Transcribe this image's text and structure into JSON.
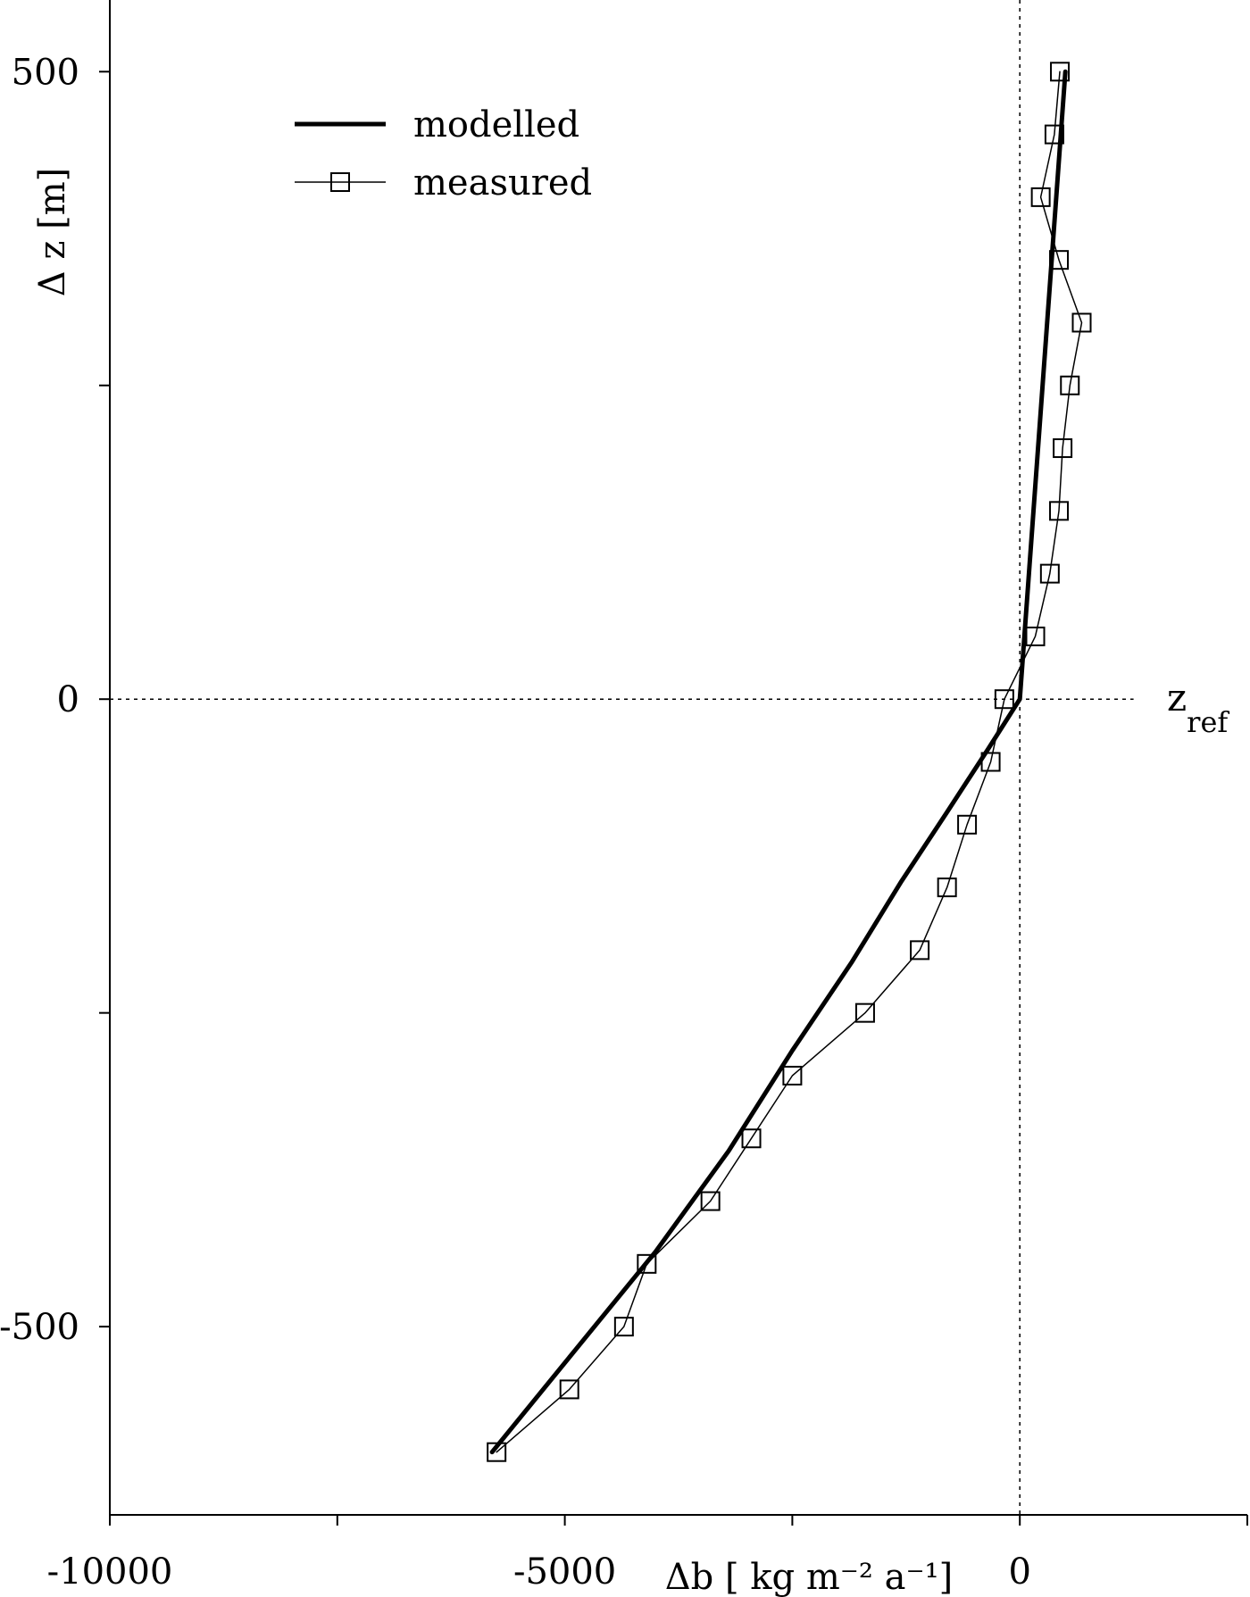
{
  "chart_data": {
    "type": "line",
    "xlabel": "Δb [ kg m⁻² a⁻¹]",
    "ylabel": "Δ z [m]",
    "xlim": [
      -10000,
      2500
    ],
    "ylim": [
      -650,
      550
    ],
    "x_ticks": [
      -10000,
      -7500,
      -5000,
      -2500,
      0,
      2500
    ],
    "x_tick_labels": [
      "-10000",
      "",
      "-5000",
      "",
      "0",
      ""
    ],
    "y_ticks": [
      -500,
      -250,
      0,
      250,
      500
    ],
    "y_tick_labels": [
      "-500",
      "",
      "0",
      "",
      "500"
    ],
    "reference_label": "z",
    "reference_label_sub": "ref",
    "legend_position": "top-left",
    "grid": false,
    "series": [
      {
        "name": "modelled",
        "style": "thick-line",
        "color": "#000000",
        "x": [
          -5800,
          -4900,
          -4000,
          -3200,
          -2500,
          -1850,
          -1300,
          -800,
          -350,
          0,
          50,
          150,
          250,
          350,
          450,
          500
        ],
        "y": [
          -600,
          -520,
          -440,
          -360,
          -280,
          -210,
          -145,
          -90,
          -40,
          0,
          50,
          150,
          250,
          350,
          450,
          500
        ]
      },
      {
        "name": "measured",
        "style": "thin-line-square-markers",
        "color": "#000000",
        "x": [
          -5750,
          -4950,
          -4350,
          -4100,
          -3400,
          -2950,
          -2500,
          -1700,
          -1100,
          -800,
          -580,
          -320,
          -170,
          170,
          330,
          430,
          470,
          550,
          680,
          430,
          230,
          380,
          440
        ],
        "y": [
          -600,
          -550,
          -500,
          -450,
          -400,
          -350,
          -300,
          -250,
          -200,
          -150,
          -100,
          -50,
          0,
          50,
          100,
          150,
          200,
          250,
          300,
          350,
          400,
          450,
          500
        ]
      }
    ]
  }
}
